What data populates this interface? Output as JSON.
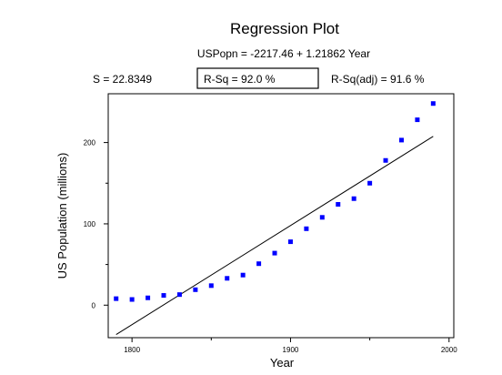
{
  "chart_data": {
    "type": "scatter",
    "title": "Regression Plot",
    "subtitle": "USPopn = -2217.46 + 1.21862 Year",
    "stats": {
      "s": "S = 22.8349",
      "r_sq": "R-Sq = 92.0 %",
      "r_sq_adj": "R-Sq(adj) = 91.6 %"
    },
    "xlabel": "Year",
    "ylabel": "US Population (millions)",
    "xlim": [
      1785,
      2003
    ],
    "ylim": [
      -40,
      260
    ],
    "x_ticks": [
      1800,
      1900,
      2000
    ],
    "x_tick_labels": [
      "1800",
      "1900",
      "2000"
    ],
    "y_ticks": [
      0,
      100,
      200
    ],
    "y_tick_labels": [
      "0",
      "100",
      "200"
    ],
    "x_minor_ticks": [
      1850,
      1950
    ],
    "y_minor_ticks": [
      50,
      150
    ],
    "points": {
      "x": [
        1790,
        1800,
        1810,
        1820,
        1830,
        1840,
        1850,
        1860,
        1870,
        1880,
        1890,
        1900,
        1910,
        1920,
        1930,
        1940,
        1950,
        1960,
        1970,
        1980,
        1990
      ],
      "y": [
        8,
        7,
        9,
        12,
        13,
        19,
        24,
        33,
        37,
        51,
        64,
        78,
        94,
        108,
        124,
        131,
        150,
        178,
        203,
        228,
        248
      ]
    },
    "fit_line": {
      "intercept": -2217.46,
      "slope": 1.21862,
      "x_start": 1790,
      "x_end": 1990
    },
    "point_color": "#0000ff",
    "line_color": "#000000"
  }
}
